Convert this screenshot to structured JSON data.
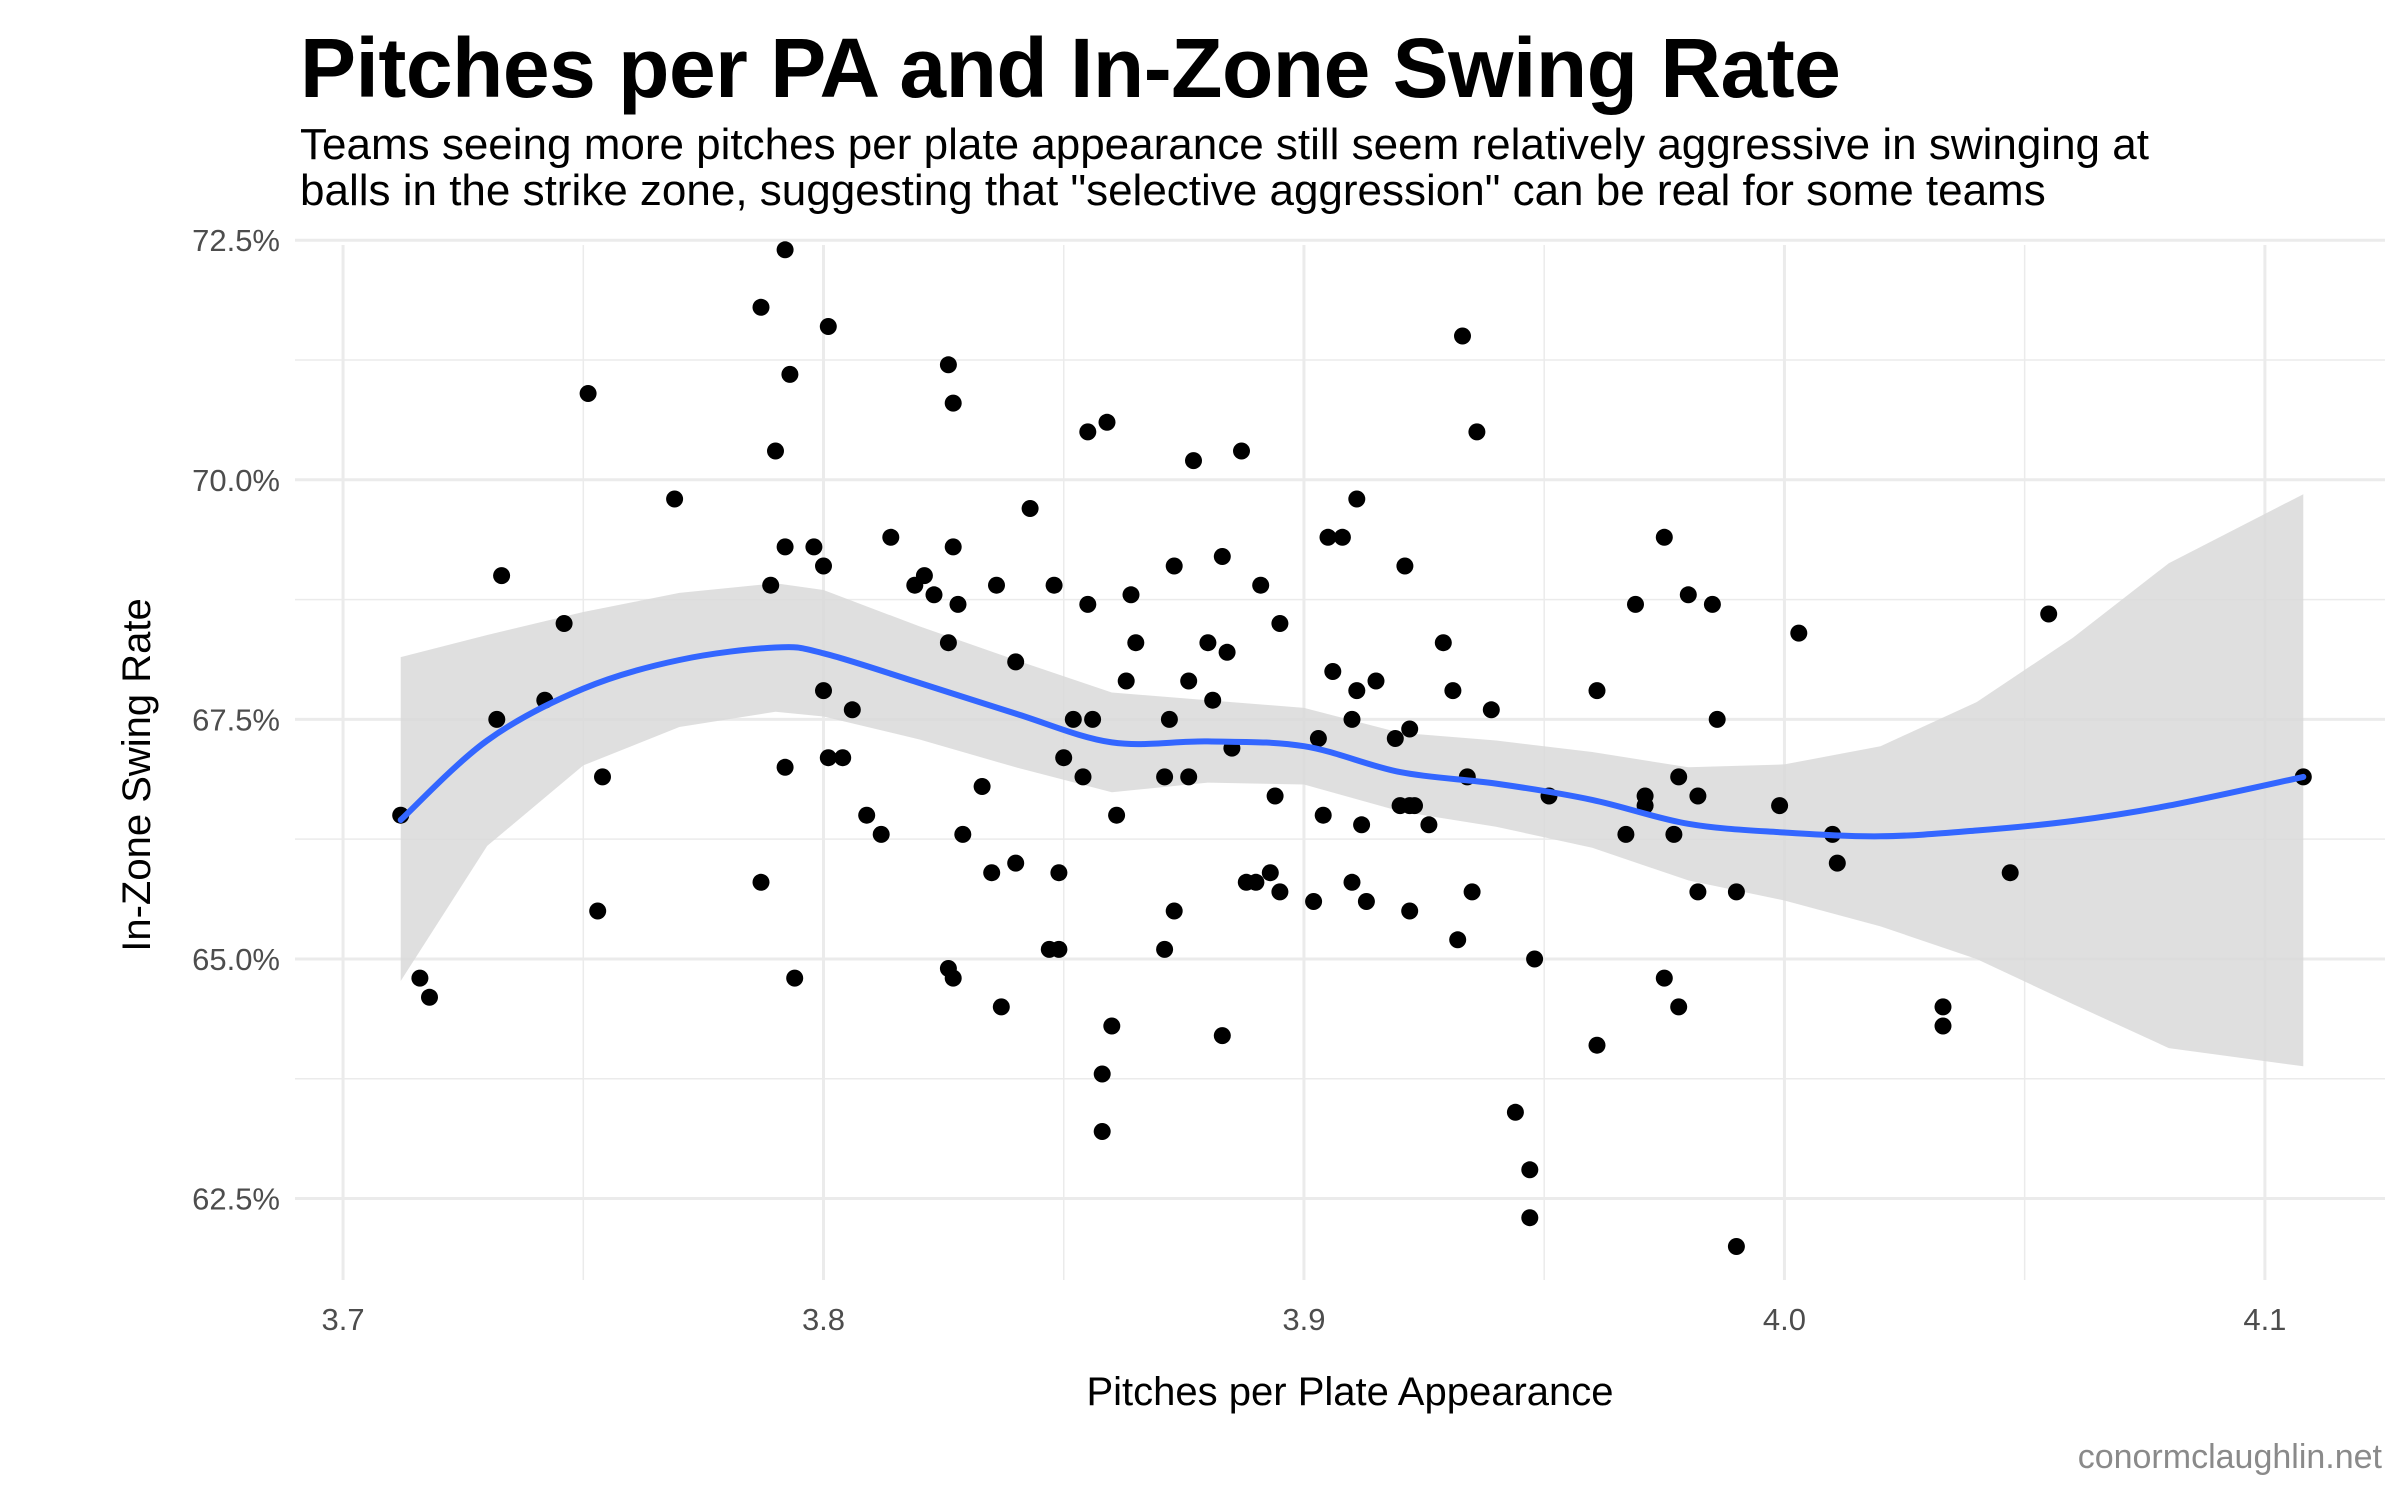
{
  "title": "Pitches per PA and In-Zone Swing Rate",
  "subtitle_lines": [
    "Teams seeing more pitches per plate appearance still seem relatively aggressive in swinging at",
    "balls in the strike zone, suggesting that \"selective aggression\" can be real for some teams"
  ],
  "caption": "conormclaughlin.net",
  "colors": {
    "points": "#000000",
    "smooth_line": "#3366FF",
    "confidence_band": "#d9d9d9",
    "grid": "#ebebeb",
    "tick_text": "#4d4d4d",
    "caption": "#8a8a8a"
  },
  "chart_data": {
    "type": "scatter",
    "title": "Pitches per PA and In-Zone Swing Rate",
    "xlabel": "Pitches per Plate Appearance",
    "ylabel": "In-Zone Swing Rate",
    "xlim": [
      3.69,
      4.125
    ],
    "ylim": [
      0.6165,
      0.7245
    ],
    "x_ticks": [
      3.7,
      3.8,
      3.9,
      4.0,
      4.1
    ],
    "x_tick_labels": [
      "3.7",
      "3.8",
      "3.9",
      "4.0",
      "4.1"
    ],
    "y_ticks": [
      0.625,
      0.65,
      0.675,
      0.7,
      0.725
    ],
    "y_tick_labels": [
      "62.5%",
      "65.0%",
      "67.5%",
      "70.0%",
      "72.5%"
    ],
    "grid": true,
    "points": [
      [
        3.712,
        0.665
      ],
      [
        3.716,
        0.648
      ],
      [
        3.718,
        0.646
      ],
      [
        3.732,
        0.675
      ],
      [
        3.733,
        0.69
      ],
      [
        3.742,
        0.677
      ],
      [
        3.746,
        0.685
      ],
      [
        3.751,
        0.709
      ],
      [
        3.753,
        0.655
      ],
      [
        3.754,
        0.669
      ],
      [
        3.769,
        0.698
      ],
      [
        3.787,
        0.658
      ],
      [
        3.787,
        0.718
      ],
      [
        3.789,
        0.689
      ],
      [
        3.79,
        0.703
      ],
      [
        3.792,
        0.67
      ],
      [
        3.792,
        0.693
      ],
      [
        3.793,
        0.711
      ],
      [
        3.792,
        0.724
      ],
      [
        3.794,
        0.648
      ],
      [
        3.798,
        0.693
      ],
      [
        3.8,
        0.691
      ],
      [
        3.8,
        0.678
      ],
      [
        3.801,
        0.671
      ],
      [
        3.801,
        0.716
      ],
      [
        3.804,
        0.671
      ],
      [
        3.806,
        0.676
      ],
      [
        3.809,
        0.665
      ],
      [
        3.812,
        0.663
      ],
      [
        3.814,
        0.694
      ],
      [
        3.819,
        0.689
      ],
      [
        3.821,
        0.69
      ],
      [
        3.823,
        0.688
      ],
      [
        3.826,
        0.649
      ],
      [
        3.826,
        0.683
      ],
      [
        3.826,
        0.712
      ],
      [
        3.827,
        0.708
      ],
      [
        3.827,
        0.693
      ],
      [
        3.827,
        0.648
      ],
      [
        3.828,
        0.687
      ],
      [
        3.829,
        0.663
      ],
      [
        3.833,
        0.668
      ],
      [
        3.835,
        0.659
      ],
      [
        3.836,
        0.689
      ],
      [
        3.837,
        0.645
      ],
      [
        3.84,
        0.681
      ],
      [
        3.84,
        0.66
      ],
      [
        3.843,
        0.697
      ],
      [
        3.847,
        0.651
      ],
      [
        3.848,
        0.689
      ],
      [
        3.849,
        0.659
      ],
      [
        3.849,
        0.651
      ],
      [
        3.85,
        0.671
      ],
      [
        3.852,
        0.675
      ],
      [
        3.854,
        0.669
      ],
      [
        3.855,
        0.687
      ],
      [
        3.855,
        0.705
      ],
      [
        3.856,
        0.675
      ],
      [
        3.858,
        0.632
      ],
      [
        3.858,
        0.638
      ],
      [
        3.859,
        0.706
      ],
      [
        3.86,
        0.643
      ],
      [
        3.861,
        0.665
      ],
      [
        3.863,
        0.679
      ],
      [
        3.864,
        0.688
      ],
      [
        3.865,
        0.683
      ],
      [
        3.871,
        0.669
      ],
      [
        3.871,
        0.651
      ],
      [
        3.872,
        0.675
      ],
      [
        3.873,
        0.691
      ],
      [
        3.873,
        0.655
      ],
      [
        3.876,
        0.669
      ],
      [
        3.876,
        0.679
      ],
      [
        3.877,
        0.702
      ],
      [
        3.88,
        0.683
      ],
      [
        3.881,
        0.677
      ],
      [
        3.883,
        0.642
      ],
      [
        3.883,
        0.692
      ],
      [
        3.884,
        0.682
      ],
      [
        3.885,
        0.672
      ],
      [
        3.887,
        0.703
      ],
      [
        3.888,
        0.658
      ],
      [
        3.89,
        0.658
      ],
      [
        3.891,
        0.689
      ],
      [
        3.893,
        0.659
      ],
      [
        3.894,
        0.667
      ],
      [
        3.895,
        0.657
      ],
      [
        3.895,
        0.685
      ],
      [
        3.902,
        0.656
      ],
      [
        3.903,
        0.673
      ],
      [
        3.904,
        0.665
      ],
      [
        3.905,
        0.694
      ],
      [
        3.906,
        0.68
      ],
      [
        3.908,
        0.694
      ],
      [
        3.91,
        0.658
      ],
      [
        3.91,
        0.675
      ],
      [
        3.911,
        0.698
      ],
      [
        3.911,
        0.678
      ],
      [
        3.912,
        0.664
      ],
      [
        3.913,
        0.656
      ],
      [
        3.915,
        0.679
      ],
      [
        3.919,
        0.673
      ],
      [
        3.92,
        0.666
      ],
      [
        3.921,
        0.691
      ],
      [
        3.922,
        0.666
      ],
      [
        3.922,
        0.674
      ],
      [
        3.922,
        0.655
      ],
      [
        3.923,
        0.666
      ],
      [
        3.926,
        0.664
      ],
      [
        3.929,
        0.683
      ],
      [
        3.931,
        0.678
      ],
      [
        3.932,
        0.652
      ],
      [
        3.933,
        0.715
      ],
      [
        3.934,
        0.669
      ],
      [
        3.935,
        0.657
      ],
      [
        3.936,
        0.705
      ],
      [
        3.939,
        0.676
      ],
      [
        3.944,
        0.634
      ],
      [
        3.947,
        0.628
      ],
      [
        3.947,
        0.623
      ],
      [
        3.948,
        0.65
      ],
      [
        3.951,
        0.667
      ],
      [
        3.961,
        0.641
      ],
      [
        3.961,
        0.678
      ],
      [
        3.967,
        0.663
      ],
      [
        3.969,
        0.687
      ],
      [
        3.971,
        0.667
      ],
      [
        3.971,
        0.666
      ],
      [
        3.975,
        0.648
      ],
      [
        3.975,
        0.694
      ],
      [
        3.977,
        0.663
      ],
      [
        3.978,
        0.645
      ],
      [
        3.978,
        0.669
      ],
      [
        3.98,
        0.688
      ],
      [
        3.982,
        0.657
      ],
      [
        3.982,
        0.667
      ],
      [
        3.985,
        0.687
      ],
      [
        3.986,
        0.675
      ],
      [
        3.99,
        0.657
      ],
      [
        3.99,
        0.62
      ],
      [
        3.999,
        0.666
      ],
      [
        4.003,
        0.684
      ],
      [
        4.01,
        0.663
      ],
      [
        4.011,
        0.66
      ],
      [
        4.033,
        0.643
      ],
      [
        4.033,
        0.645
      ],
      [
        4.047,
        0.659
      ],
      [
        4.055,
        0.686
      ],
      [
        4.108,
        0.669
      ]
    ],
    "smooth_line": {
      "x": [
        3.712,
        3.73,
        3.75,
        3.77,
        3.79,
        3.8,
        3.82,
        3.84,
        3.86,
        3.88,
        3.9,
        3.92,
        3.94,
        3.96,
        3.98,
        4.0,
        4.02,
        4.04,
        4.06,
        4.08,
        4.108
      ],
      "y": [
        0.6645,
        0.6728,
        0.6782,
        0.6812,
        0.6825,
        0.6819,
        0.6788,
        0.6756,
        0.6726,
        0.6727,
        0.6722,
        0.6695,
        0.6683,
        0.6666,
        0.6641,
        0.6632,
        0.6628,
        0.6634,
        0.6644,
        0.666,
        0.669
      ]
    },
    "band_upper": [
      0.6815,
      0.6838,
      0.6862,
      0.6882,
      0.6892,
      0.6885,
      0.6847,
      0.6812,
      0.6778,
      0.677,
      0.6762,
      0.6736,
      0.6728,
      0.6716,
      0.67,
      0.6703,
      0.6722,
      0.6768,
      0.6835,
      0.6913,
      0.6985
    ],
    "band_lower": [
      0.6477,
      0.6618,
      0.6702,
      0.6742,
      0.6758,
      0.6753,
      0.6729,
      0.67,
      0.6674,
      0.6684,
      0.6682,
      0.6654,
      0.6638,
      0.6616,
      0.6582,
      0.6561,
      0.6534,
      0.65,
      0.6453,
      0.6407,
      0.6388
    ]
  }
}
